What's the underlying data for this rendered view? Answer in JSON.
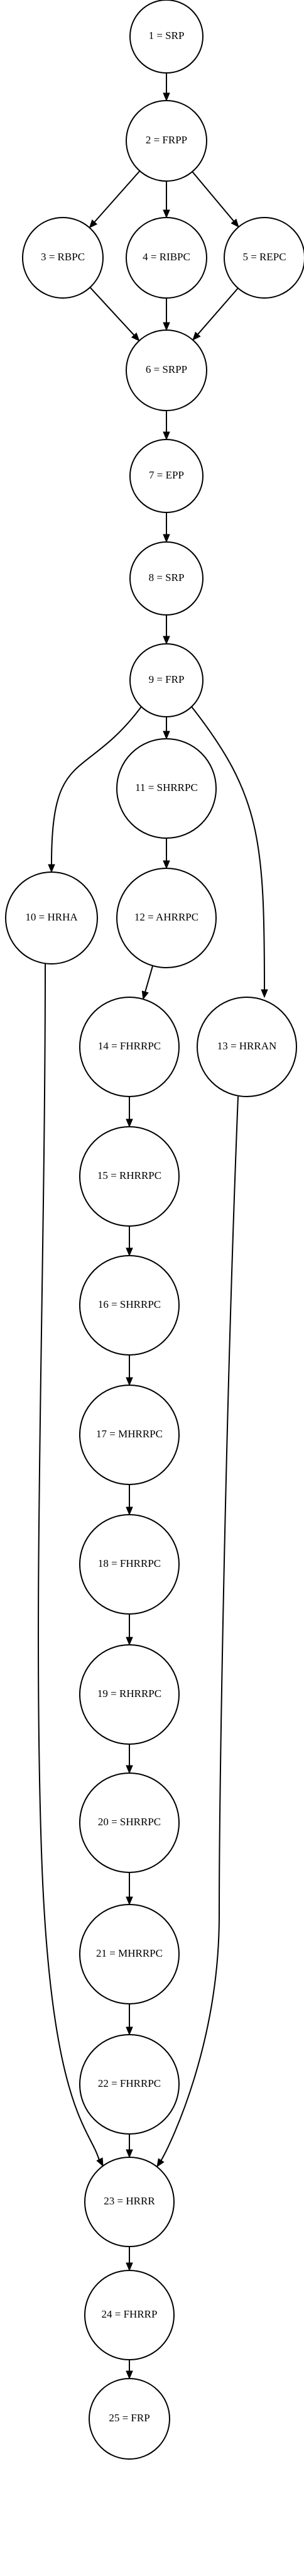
{
  "graph": {
    "nodes": [
      {
        "id": "1",
        "label": "1 = SRP"
      },
      {
        "id": "2",
        "label": "2 = FRPP"
      },
      {
        "id": "3",
        "label": "3 = RBPC"
      },
      {
        "id": "4",
        "label": "4 = RIBPC"
      },
      {
        "id": "5",
        "label": "5 = REPC"
      },
      {
        "id": "6",
        "label": "6 = SRPP"
      },
      {
        "id": "7",
        "label": "7 = EPP"
      },
      {
        "id": "8",
        "label": "8 = SRP"
      },
      {
        "id": "9",
        "label": "9 = FRP"
      },
      {
        "id": "10",
        "label": "10 = HRHA"
      },
      {
        "id": "11",
        "label": "11 = SHRRPC"
      },
      {
        "id": "12",
        "label": "12 = AHRRPC"
      },
      {
        "id": "13",
        "label": "13 = HRRAN"
      },
      {
        "id": "14",
        "label": "14 = FHRRPC"
      },
      {
        "id": "15",
        "label": "15 = RHRRPC"
      },
      {
        "id": "16",
        "label": "16 = SHRRPC"
      },
      {
        "id": "17",
        "label": "17 = MHRRPC"
      },
      {
        "id": "18",
        "label": "18 = FHRRPC"
      },
      {
        "id": "19",
        "label": "19 = RHRRPC"
      },
      {
        "id": "20",
        "label": "20 = SHRRPC"
      },
      {
        "id": "21",
        "label": "21 = MHRRPC"
      },
      {
        "id": "22",
        "label": "22 = FHRRPC"
      },
      {
        "id": "23",
        "label": "23 = HRRR"
      },
      {
        "id": "24",
        "label": "24 = FHRRP"
      },
      {
        "id": "25",
        "label": "25 = FRP"
      }
    ],
    "edges": [
      {
        "from": "1",
        "to": "2"
      },
      {
        "from": "2",
        "to": "3"
      },
      {
        "from": "2",
        "to": "4"
      },
      {
        "from": "2",
        "to": "5"
      },
      {
        "from": "3",
        "to": "6"
      },
      {
        "from": "4",
        "to": "6"
      },
      {
        "from": "5",
        "to": "6"
      },
      {
        "from": "6",
        "to": "7"
      },
      {
        "from": "7",
        "to": "8"
      },
      {
        "from": "8",
        "to": "9"
      },
      {
        "from": "9",
        "to": "10"
      },
      {
        "from": "9",
        "to": "11"
      },
      {
        "from": "9",
        "to": "13"
      },
      {
        "from": "11",
        "to": "12"
      },
      {
        "from": "12",
        "to": "14"
      },
      {
        "from": "14",
        "to": "15"
      },
      {
        "from": "15",
        "to": "16"
      },
      {
        "from": "16",
        "to": "17"
      },
      {
        "from": "17",
        "to": "18"
      },
      {
        "from": "18",
        "to": "19"
      },
      {
        "from": "19",
        "to": "20"
      },
      {
        "from": "20",
        "to": "21"
      },
      {
        "from": "21",
        "to": "22"
      },
      {
        "from": "10",
        "to": "23"
      },
      {
        "from": "22",
        "to": "23"
      },
      {
        "from": "13",
        "to": "23"
      },
      {
        "from": "23",
        "to": "24"
      },
      {
        "from": "24",
        "to": "25"
      }
    ]
  }
}
